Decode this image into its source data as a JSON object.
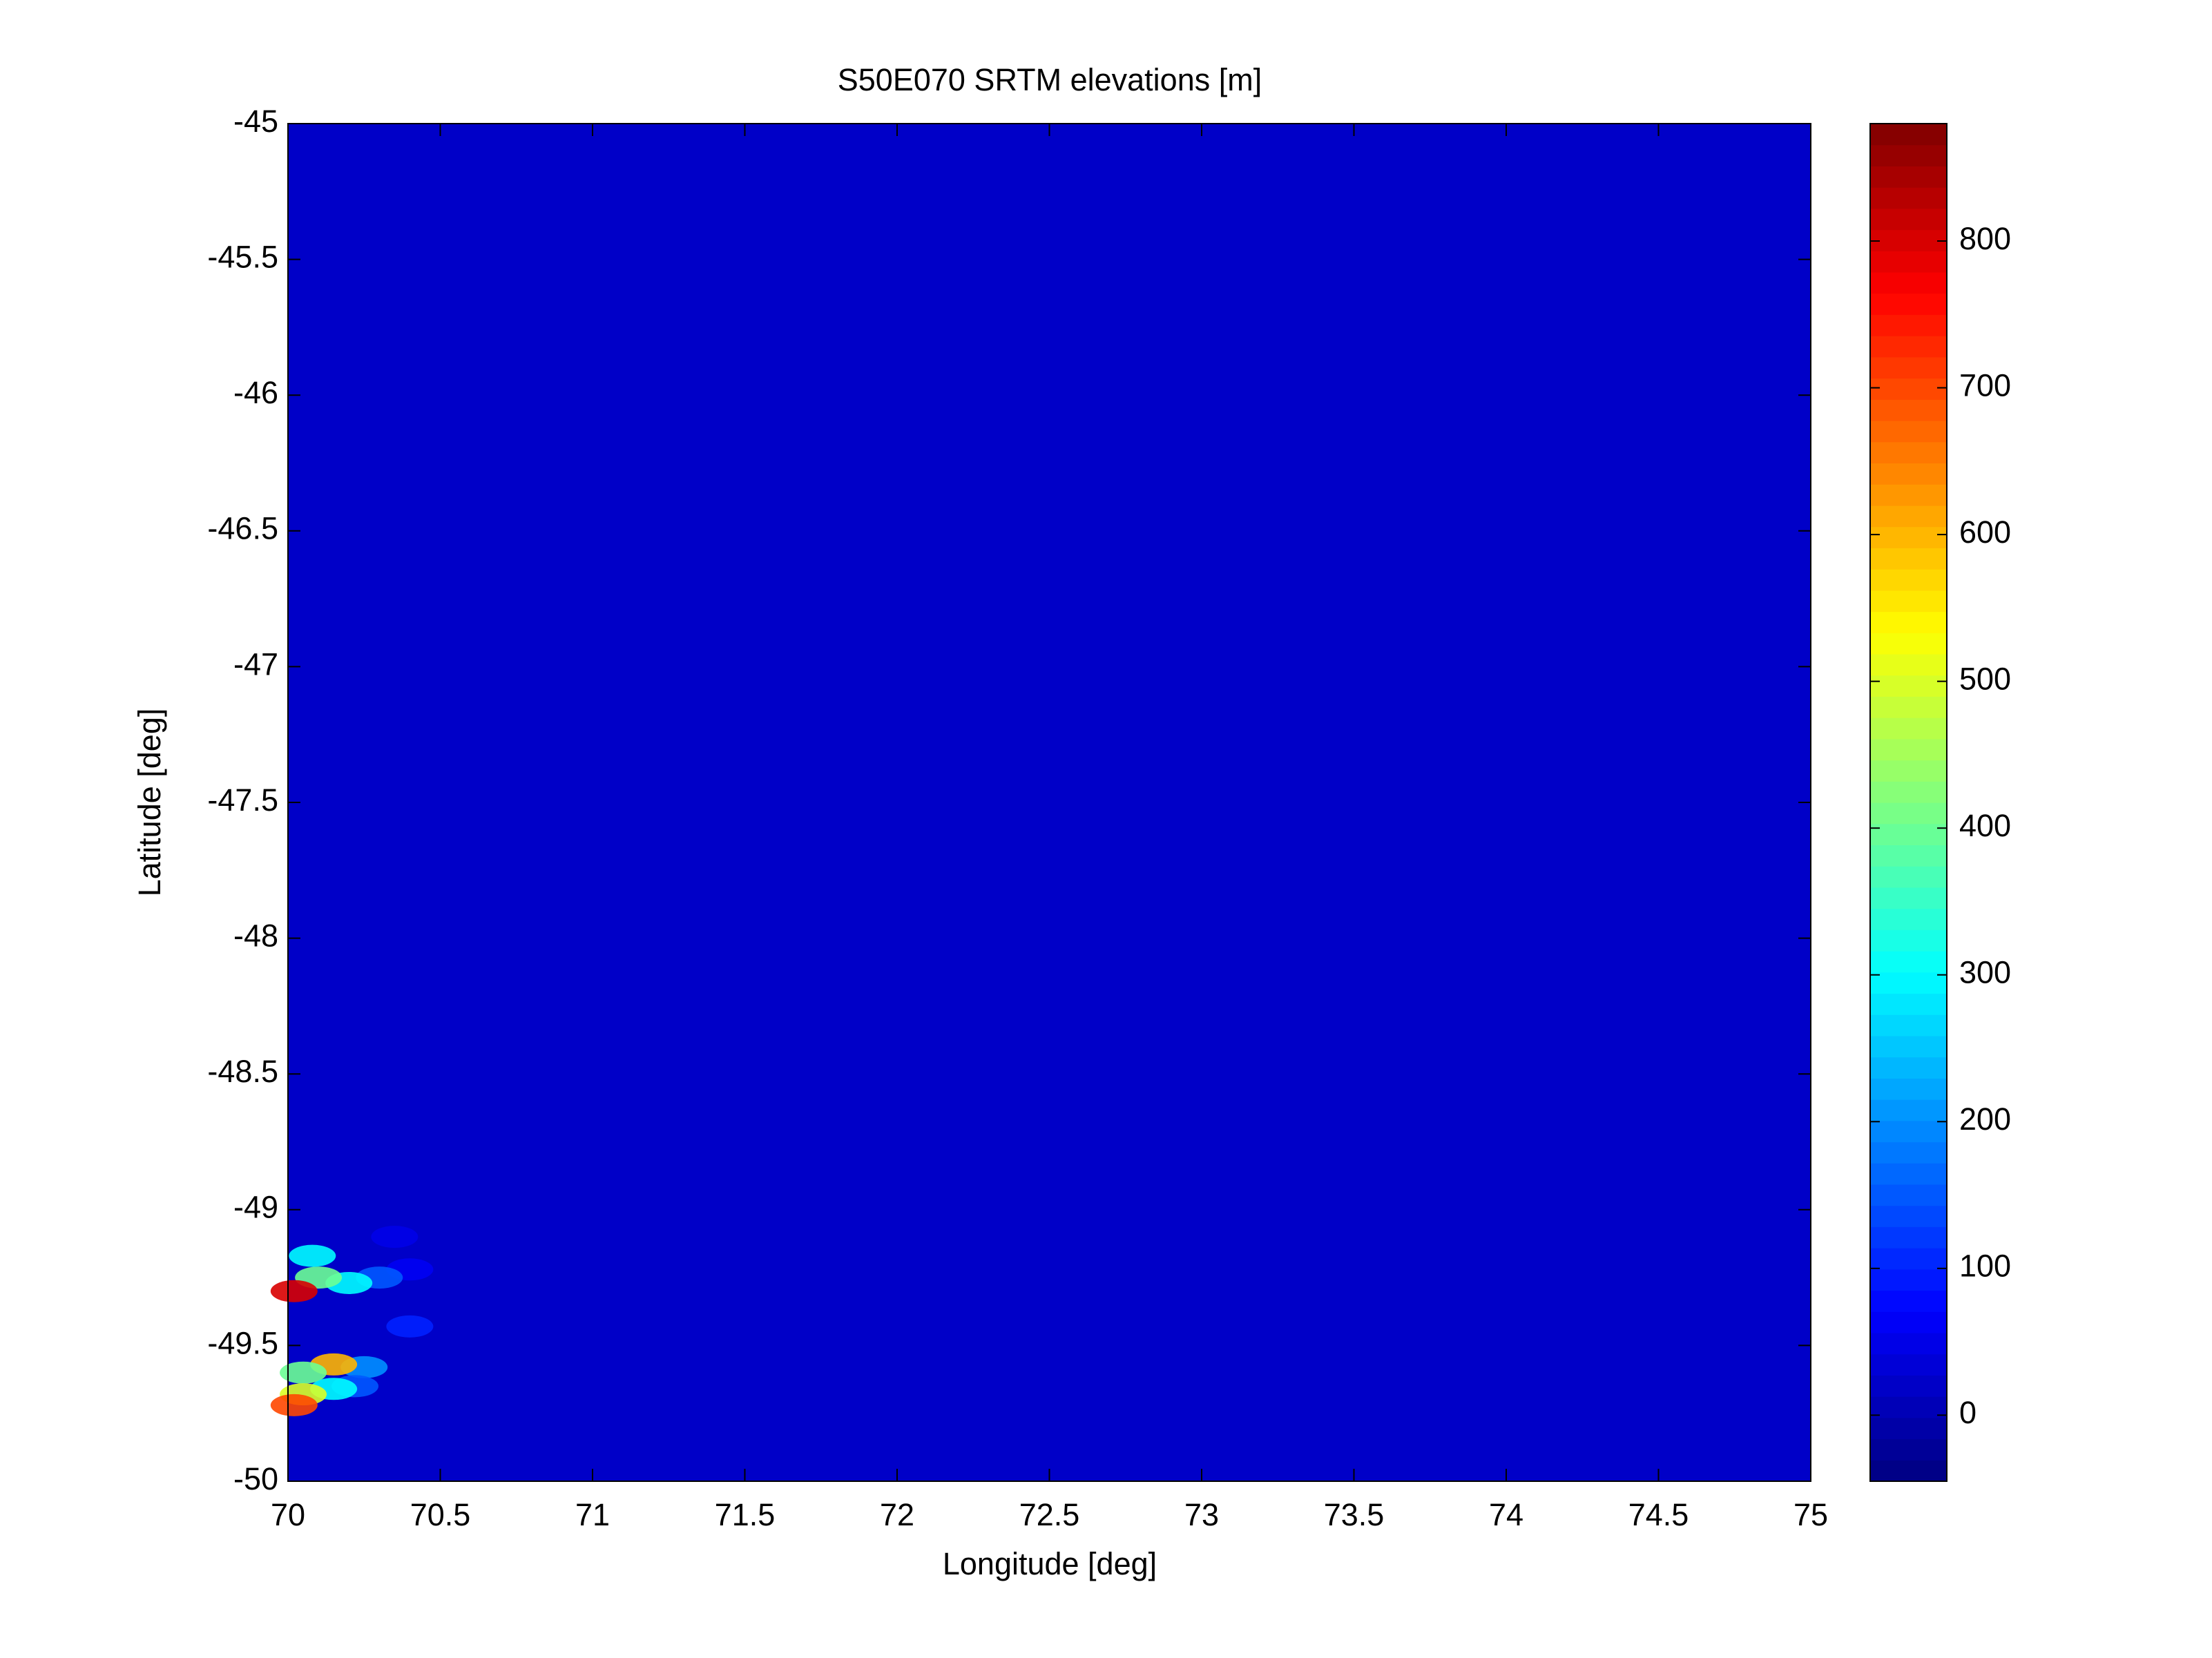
{
  "chart_data": {
    "type": "heatmap",
    "title": "S50E070 SRTM elevations [m]",
    "x_label": "Longitude [deg]",
    "y_label": "Latitude [deg]",
    "xlim": [
      70,
      75
    ],
    "xticks": [
      70,
      70.5,
      71,
      71.5,
      72,
      72.5,
      73,
      73.5,
      74,
      74.5,
      75
    ],
    "ylim": [
      -50,
      -45
    ],
    "yticks": [
      -50,
      -49.5,
      -49,
      -48.5,
      -48,
      -47.5,
      -47,
      -46.5,
      -46,
      -45.5,
      -45
    ],
    "x": [
      70.4,
      70.35,
      70.3,
      70.2,
      70.1,
      70.08,
      70.02,
      70.4,
      70.25,
      70.15,
      70.05,
      70.22,
      70.15,
      70.05,
      70.02
    ],
    "y": [
      -49.22,
      -49.1,
      -49.25,
      -49.27,
      -49.25,
      -49.17,
      -49.3,
      -49.43,
      -49.58,
      -49.57,
      -49.6,
      -49.65,
      -49.66,
      -49.68,
      -49.72
    ],
    "values": [
      60,
      50,
      150,
      300,
      400,
      300,
      800,
      100,
      200,
      600,
      400,
      150,
      300,
      500,
      700
    ],
    "colormap": "jet",
    "clim": [
      -45,
      880
    ],
    "cticks": [
      0,
      100,
      200,
      300,
      400,
      500,
      600,
      700,
      800
    ]
  }
}
